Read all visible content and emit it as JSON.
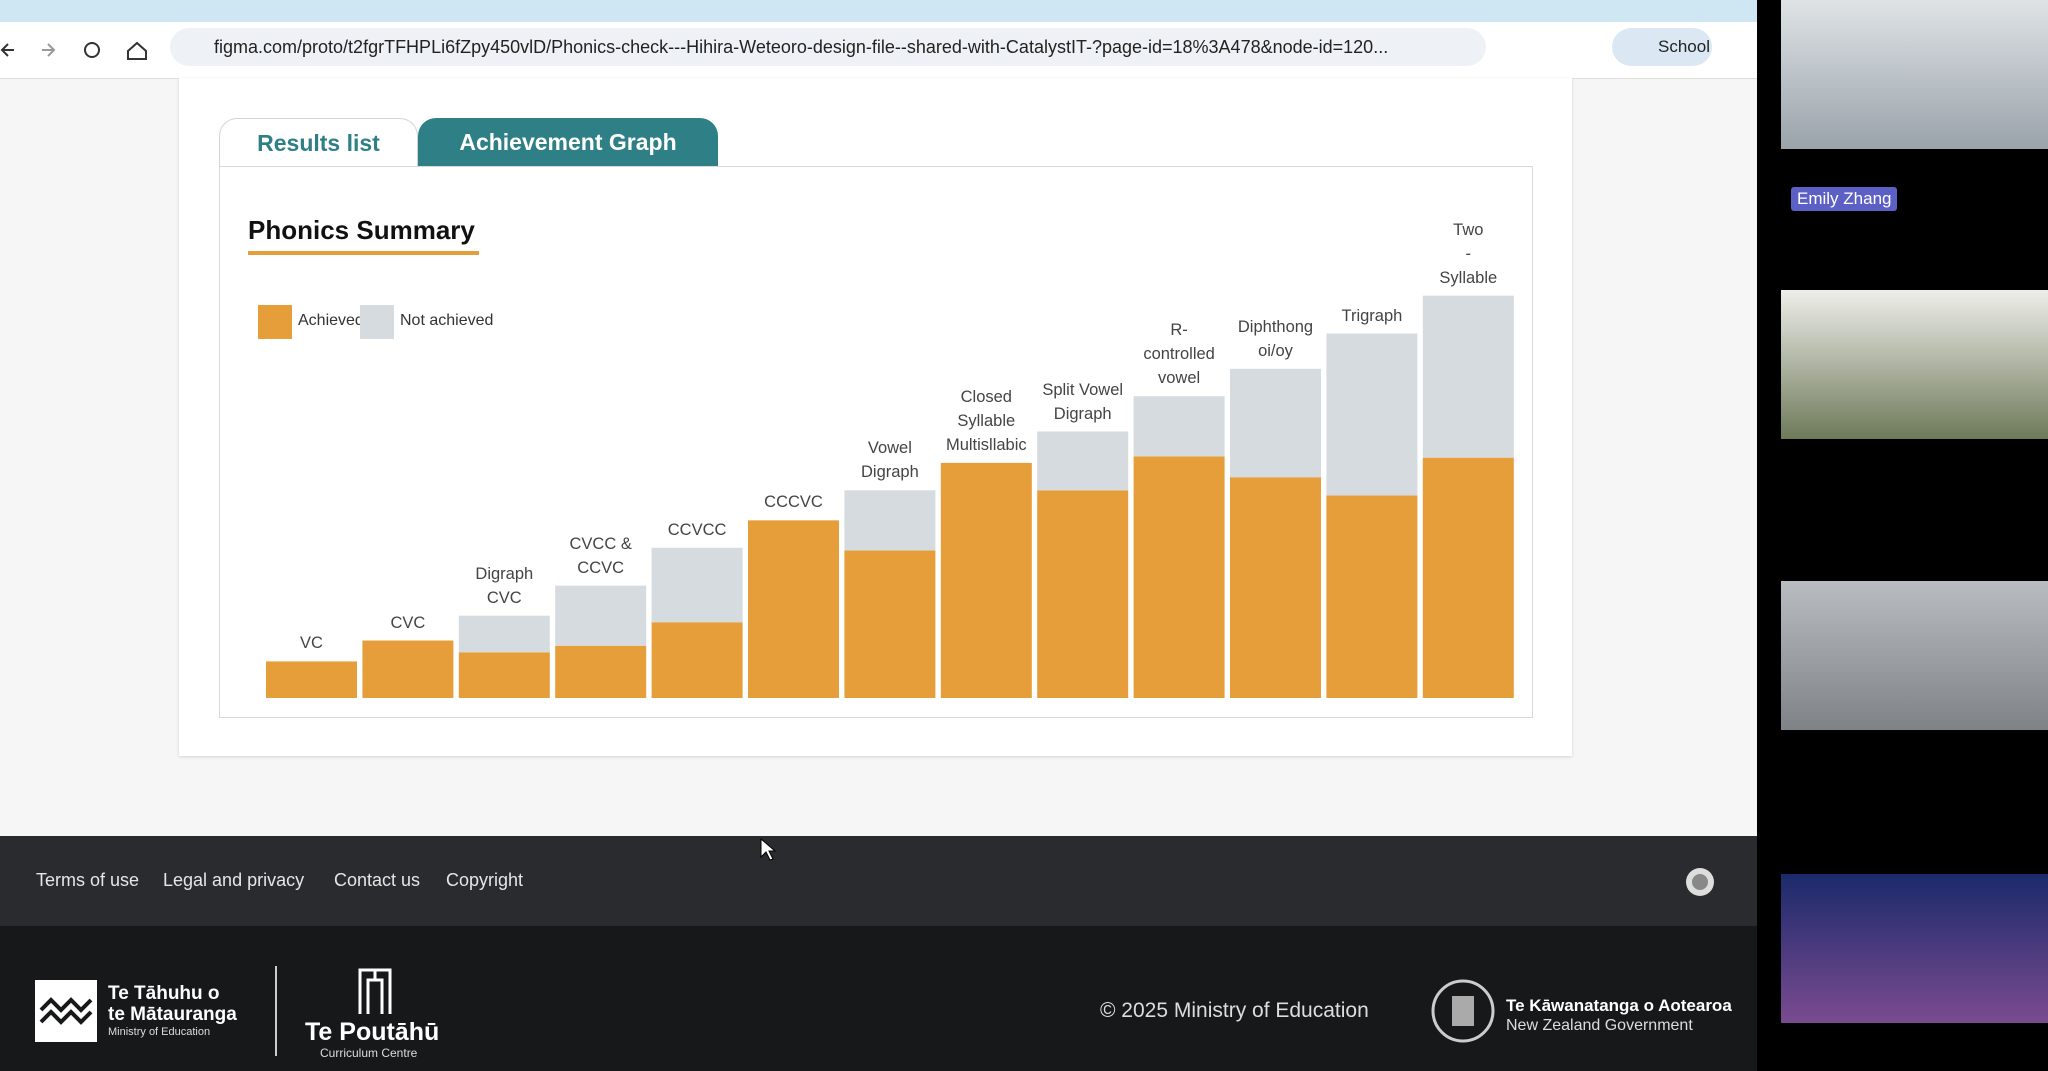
{
  "browser": {
    "url": "figma.com/proto/t2fgrTFHPLi6fZpy450vlD/Phonics-check---Hihira-Weteoro-design-file--shared-with-CatalystIT-?page-id=18%3A478&node-id=120...",
    "profile": "School"
  },
  "tabs": [
    "Results list",
    "Achievement Graph"
  ],
  "chart_data": {
    "type": "bar",
    "stacked": true,
    "title": "Phonics Summary",
    "categories": [
      "VC",
      "CVC",
      "Digraph\nCVC",
      "CVCC &\nCCVC",
      "CCVCC",
      "CCCVC",
      "Vowel\nDigraph",
      "Closed\nSyllable\nMultisllabic",
      "Split Vowel\nDigraph",
      "R-\ncontrolled\nvowel",
      "Diphthong\noi/oy",
      "Trigraph",
      "Two\n- Syllable"
    ],
    "series": [
      {
        "name": "Achieved",
        "color": "#e59e3a",
        "values": [
          28,
          44,
          35,
          40,
          58,
          136,
          113,
          180,
          159,
          185,
          169,
          155,
          184
        ]
      },
      {
        "name": "Not achieved",
        "color": "#d6dbe0",
        "values": [
          0,
          0,
          28,
          46,
          57,
          0,
          46,
          0,
          45,
          46,
          83,
          124,
          124
        ]
      }
    ],
    "ylim": [
      0,
      320
    ]
  },
  "footer": {
    "links": [
      "Terms of use",
      "Legal and privacy",
      "Contact us",
      "Copyright"
    ],
    "copyright": "© 2025 Ministry of Education",
    "ministry_logo": [
      "Te Tāhuhu o",
      "te Mātauranga",
      "Ministry of Education"
    ],
    "centre_logo": [
      "Te Poutāhū",
      "Curriculum Centre"
    ],
    "government_logo": [
      "Te Kāwanatanga o Aotearoa",
      "New Zealand Government"
    ]
  },
  "participants": [
    "Emily Zhang"
  ]
}
